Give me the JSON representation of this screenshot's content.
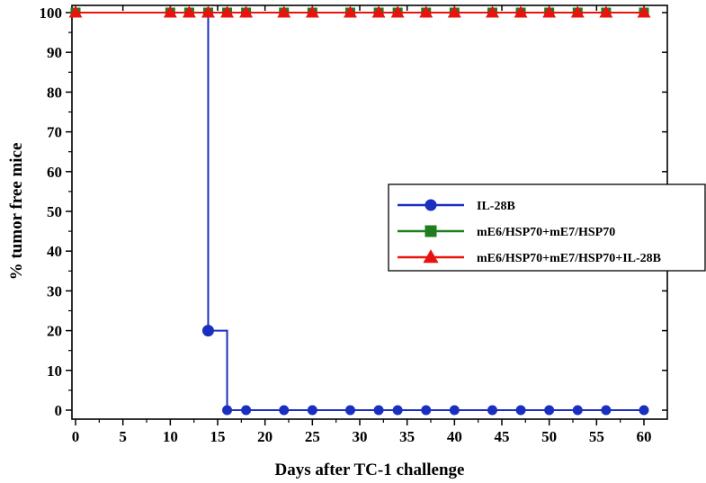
{
  "chart_data": {
    "type": "line",
    "xlabel": "Days after TC-1 challenge",
    "ylabel": "% tumor free mice",
    "xlim": [
      0,
      62
    ],
    "ylim": [
      -2,
      100
    ],
    "xticks": [
      0,
      5,
      10,
      15,
      20,
      25,
      30,
      35,
      40,
      45,
      50,
      55,
      60
    ],
    "yticks": [
      0,
      10,
      20,
      30,
      40,
      50,
      60,
      70,
      80,
      90,
      100
    ],
    "step": true,
    "legend_position": "right",
    "series": [
      {
        "name": "IL-28B",
        "color": "#1a2fbf",
        "marker": "circle",
        "points": [
          [
            0,
            100
          ],
          [
            14,
            100
          ],
          [
            14,
            20
          ],
          [
            16,
            20
          ],
          [
            16,
            0
          ],
          [
            18,
            0
          ],
          [
            22,
            0
          ],
          [
            25,
            0
          ],
          [
            29,
            0
          ],
          [
            32,
            0
          ],
          [
            34,
            0
          ],
          [
            37,
            0
          ],
          [
            40,
            0
          ],
          [
            44,
            0
          ],
          [
            47,
            0
          ],
          [
            50,
            0
          ],
          [
            53,
            0
          ],
          [
            56,
            0
          ],
          [
            60,
            0
          ]
        ],
        "marker_x": [
          0,
          14,
          16,
          18,
          22,
          25,
          29,
          32,
          34,
          37,
          40,
          44,
          47,
          50,
          53,
          56,
          60
        ]
      },
      {
        "name": "mE6/HSP70+mE7/HSP70",
        "color": "#1e7d1e",
        "marker": "square",
        "points": [
          [
            0,
            100
          ],
          [
            10,
            100
          ],
          [
            12,
            100
          ],
          [
            14,
            100
          ],
          [
            16,
            100
          ],
          [
            18,
            100
          ],
          [
            22,
            100
          ],
          [
            25,
            100
          ],
          [
            29,
            100
          ],
          [
            32,
            100
          ],
          [
            34,
            100
          ],
          [
            37,
            100
          ],
          [
            40,
            100
          ],
          [
            44,
            100
          ],
          [
            47,
            100
          ],
          [
            50,
            100
          ],
          [
            53,
            100
          ],
          [
            56,
            100
          ],
          [
            60,
            100
          ]
        ],
        "marker_x": [
          0,
          10,
          12,
          14,
          16,
          18,
          22,
          25,
          29,
          32,
          34,
          37,
          40,
          44,
          47,
          50,
          53,
          56,
          60
        ]
      },
      {
        "name": "mE6/HSP70+mE7/HSP70+IL-28B",
        "color": "#e8120e",
        "marker": "triangle",
        "points": [
          [
            0,
            100
          ],
          [
            10,
            100
          ],
          [
            12,
            100
          ],
          [
            14,
            100
          ],
          [
            16,
            100
          ],
          [
            18,
            100
          ],
          [
            22,
            100
          ],
          [
            25,
            100
          ],
          [
            29,
            100
          ],
          [
            32,
            100
          ],
          [
            34,
            100
          ],
          [
            37,
            100
          ],
          [
            40,
            100
          ],
          [
            44,
            100
          ],
          [
            47,
            100
          ],
          [
            50,
            100
          ],
          [
            53,
            100
          ],
          [
            56,
            100
          ],
          [
            60,
            100
          ]
        ],
        "marker_x": [
          0,
          10,
          12,
          14,
          16,
          18,
          22,
          25,
          29,
          32,
          34,
          37,
          40,
          44,
          47,
          50,
          53,
          56,
          60
        ]
      }
    ]
  }
}
